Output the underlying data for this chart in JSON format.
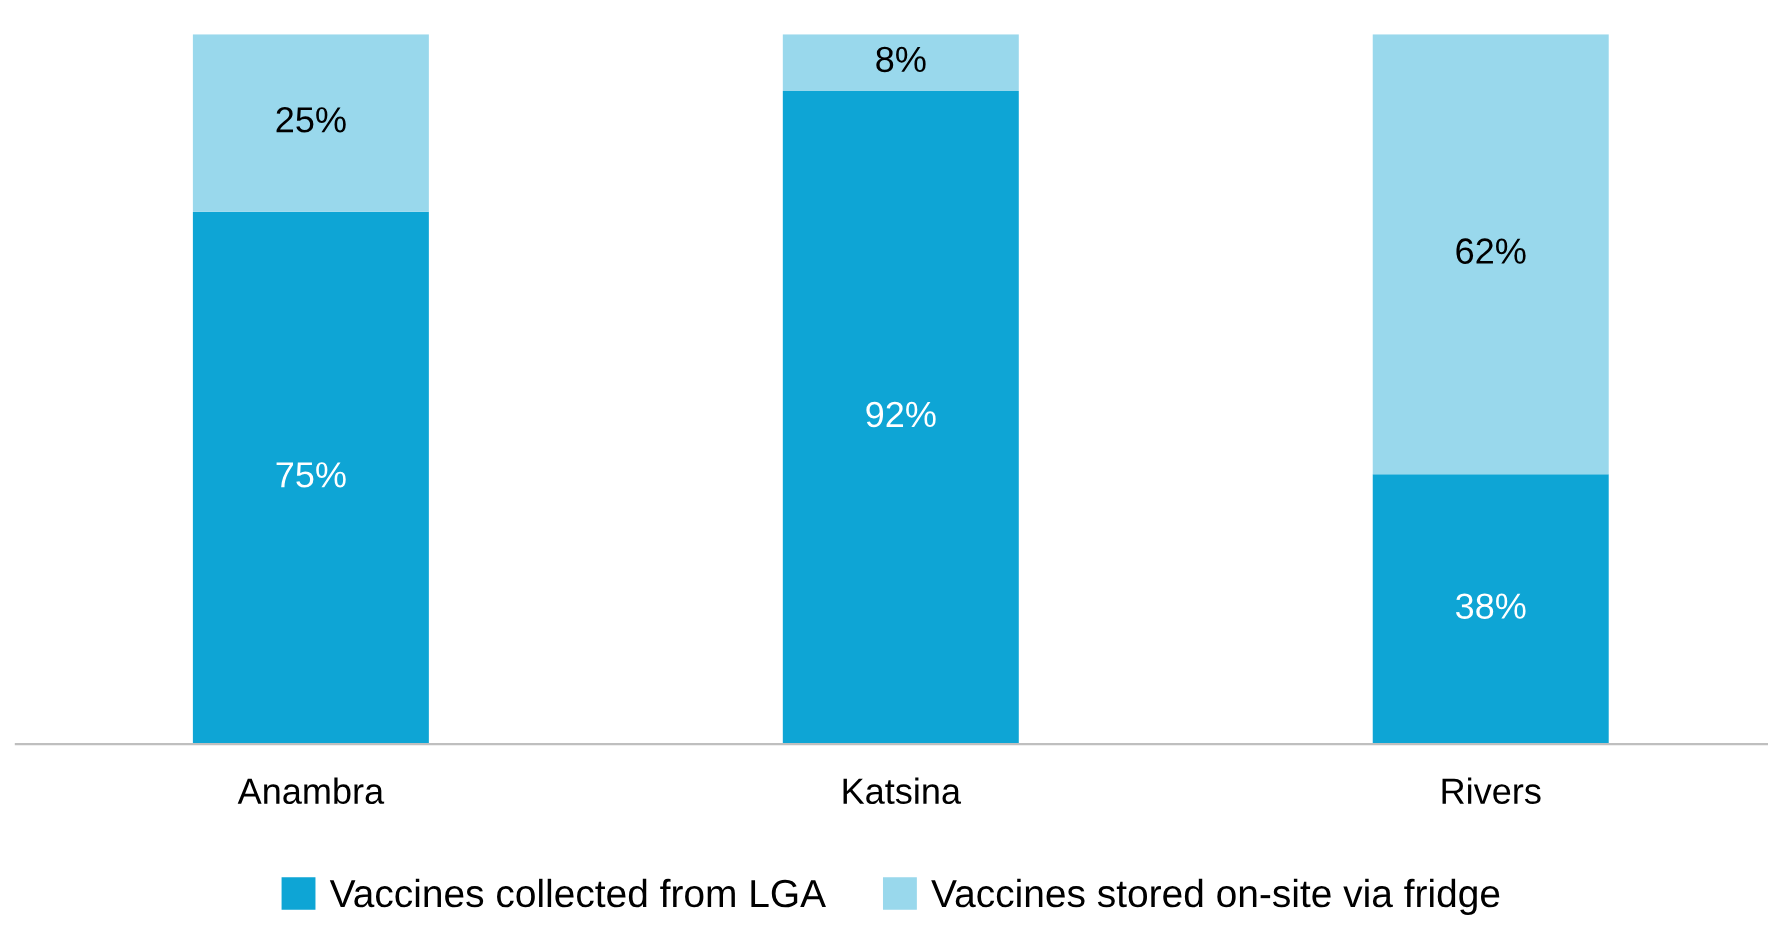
{
  "chart_data": {
    "type": "bar",
    "stacked": true,
    "categories": [
      "Anambra",
      "Katsina",
      "Rivers"
    ],
    "series": [
      {
        "name": "Vaccines collected from LGA",
        "color": "#0ea5d5",
        "values": [
          75,
          92,
          38
        ],
        "value_labels": [
          "75%",
          "92%",
          "38%"
        ]
      },
      {
        "name": "Vaccines stored on-site via fridge",
        "color": "#99d8ec",
        "values": [
          25,
          8,
          62
        ],
        "value_labels": [
          "25%",
          "8%",
          "62%"
        ]
      }
    ],
    "legend": "bottom",
    "grid": false
  }
}
